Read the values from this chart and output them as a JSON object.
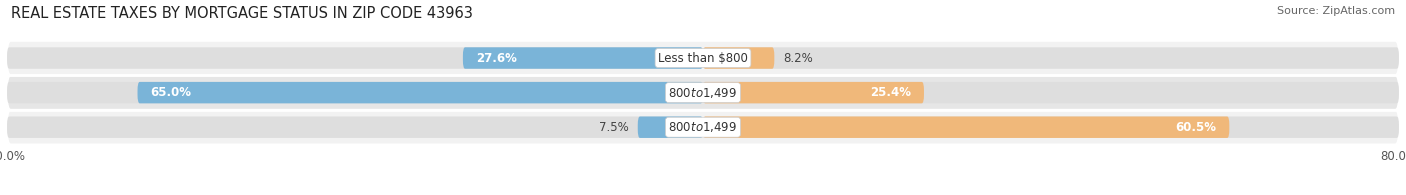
{
  "title": "REAL ESTATE TAXES BY MORTGAGE STATUS IN ZIP CODE 43963",
  "source": "Source: ZipAtlas.com",
  "rows": [
    {
      "label": "Less than $800",
      "without_mortgage": 27.6,
      "with_mortgage": 8.2
    },
    {
      "label": "$800 to $1,499",
      "without_mortgage": 65.0,
      "with_mortgage": 25.4
    },
    {
      "label": "$800 to $1,499",
      "without_mortgage": 7.5,
      "with_mortgage": 60.5
    }
  ],
  "xlim": [
    -80,
    80
  ],
  "color_without": "#7ab4d8",
  "color_with": "#f0b87a",
  "bar_height": 0.62,
  "row_bg_colors": [
    "#f2f2f2",
    "#e6e6e6",
    "#f2f2f2"
  ],
  "row_bar_bg_color": "#dedede",
  "title_fontsize": 10.5,
  "source_fontsize": 8.0,
  "label_fontsize": 8.5,
  "value_fontsize": 8.5,
  "legend_fontsize": 8.5,
  "inside_label_threshold": 15
}
